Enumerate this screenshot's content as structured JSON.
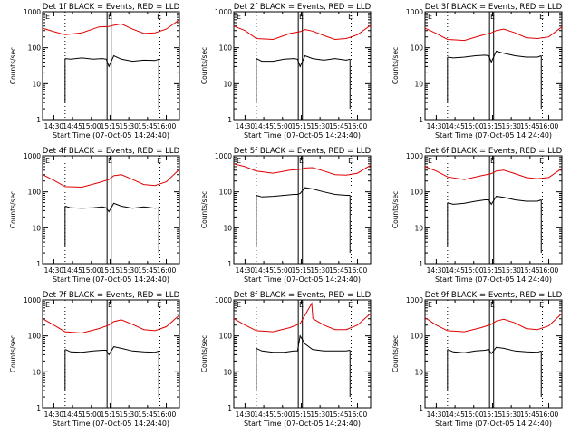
{
  "figure": {
    "x_ticks": [
      "14:30",
      "14:45",
      "15:00",
      "15:15",
      "15:30",
      "15:45",
      "16:00"
    ],
    "y_ticks": [
      "1",
      "10",
      "100",
      "1000"
    ],
    "x_label": "Start Time (07-Oct-05 14:24:40)",
    "y_label": "Counts/sec",
    "marker_label": "E",
    "colors": {
      "events": "#000000",
      "lld": "#e00000",
      "axes": "#000000"
    }
  },
  "chart_data": [
    {
      "type": "line",
      "title": "Det 1f BLACK = Events, RED = LLD",
      "xlabel": "Start Time (07-Oct-05 14:24:40)",
      "ylabel": "Counts/sec",
      "xlim_minutes_after_1430": [
        -3,
        33.5
      ],
      "ylim": [
        1,
        1000
      ],
      "y_scale": "log",
      "x_ticks": [
        "14:30",
        "14:45",
        "15:00",
        "15:15",
        "15:30",
        "15:45",
        "16:00"
      ],
      "series": [
        {
          "name": "Events",
          "color": "#000000",
          "x": [
            3,
            4.5,
            7.5,
            10.5,
            13,
            14,
            14.7,
            16,
            18,
            21,
            24,
            27,
            28
          ],
          "y": [
            50,
            48,
            52,
            48,
            50,
            48,
            30,
            60,
            48,
            42,
            45,
            44,
            48
          ]
        },
        {
          "name": "LLD",
          "color": "#e00000",
          "x": [
            -3,
            0,
            3,
            7.5,
            12,
            14.7,
            16,
            18,
            21,
            24,
            27,
            30,
            33.5
          ],
          "y": [
            350,
            280,
            230,
            260,
            380,
            390,
            420,
            460,
            330,
            250,
            260,
            330,
            600
          ]
        }
      ]
    },
    {
      "type": "line",
      "title": "Det 2f BLACK = Events, RED = LLD",
      "xlabel": "Start Time (07-Oct-05 14:24:40)",
      "ylabel": "Counts/sec",
      "xlim_minutes_after_1430": [
        -3,
        33.5
      ],
      "ylim": [
        1,
        1000
      ],
      "y_scale": "log",
      "x_ticks": [
        "14:30",
        "14:45",
        "15:00",
        "15:15",
        "15:30",
        "15:45",
        "16:00"
      ],
      "series": [
        {
          "name": "Events",
          "color": "#000000",
          "x": [
            3,
            4.5,
            7.5,
            10.5,
            13,
            14,
            14.7,
            16,
            18,
            21,
            24,
            27,
            28
          ],
          "y": [
            50,
            42,
            42,
            48,
            50,
            48,
            30,
            60,
            50,
            45,
            50,
            45,
            48
          ]
        },
        {
          "name": "LLD",
          "color": "#e00000",
          "x": [
            -3,
            0,
            3,
            7.5,
            12,
            14.7,
            16,
            18,
            21,
            24,
            27,
            30,
            33.5
          ],
          "y": [
            400,
            300,
            180,
            170,
            250,
            280,
            320,
            290,
            220,
            170,
            180,
            230,
            420
          ]
        }
      ]
    },
    {
      "type": "line",
      "title": "Det 3f BLACK = Events, RED = LLD",
      "xlabel": "Start Time (07-Oct-05 14:24:40)",
      "ylabel": "Counts/sec",
      "xlim_minutes_after_1430": [
        -3,
        33.5
      ],
      "ylim": [
        1,
        1000
      ],
      "y_scale": "log",
      "x_ticks": [
        "14:30",
        "14:45",
        "15:00",
        "15:15",
        "15:30",
        "15:45",
        "16:00"
      ],
      "series": [
        {
          "name": "Events",
          "color": "#000000",
          "x": [
            3,
            4.5,
            7.5,
            10.5,
            13,
            14,
            14.7,
            16,
            18,
            21,
            24,
            27,
            28
          ],
          "y": [
            55,
            52,
            55,
            60,
            62,
            60,
            40,
            80,
            70,
            60,
            55,
            55,
            60
          ]
        },
        {
          "name": "LLD",
          "color": "#e00000",
          "x": [
            -3,
            0,
            3,
            7.5,
            12,
            14.7,
            16,
            18,
            21,
            24,
            27,
            30,
            33.5
          ],
          "y": [
            350,
            250,
            170,
            160,
            220,
            260,
            300,
            330,
            260,
            190,
            180,
            200,
            380
          ]
        }
      ]
    },
    {
      "type": "line",
      "title": "Det 4f BLACK = Events, RED = LLD",
      "xlabel": "Start Time (07-Oct-05 14:24:40)",
      "ylabel": "Counts/sec",
      "xlim_minutes_after_1430": [
        -3,
        33.5
      ],
      "ylim": [
        1,
        1000
      ],
      "y_scale": "log",
      "x_ticks": [
        "14:30",
        "14:45",
        "15:00",
        "15:15",
        "15:30",
        "15:45",
        "16:00"
      ],
      "series": [
        {
          "name": "Events",
          "color": "#000000",
          "x": [
            3,
            4.5,
            7.5,
            10.5,
            13,
            14,
            14.7,
            16,
            18,
            21,
            24,
            27,
            28
          ],
          "y": [
            40,
            36,
            35,
            36,
            38,
            36,
            28,
            48,
            40,
            35,
            38,
            35,
            36
          ]
        },
        {
          "name": "LLD",
          "color": "#e00000",
          "x": [
            -3,
            0,
            3,
            7.5,
            12,
            14.7,
            16,
            18,
            21,
            24,
            27,
            30,
            33.5
          ],
          "y": [
            300,
            210,
            140,
            135,
            180,
            220,
            280,
            300,
            220,
            160,
            150,
            190,
            420
          ]
        }
      ]
    },
    {
      "type": "line",
      "title": "Det 5f BLACK = Events, RED = LLD",
      "xlabel": "Start Time (07-Oct-05 14:24:40)",
      "ylabel": "Counts/sec",
      "xlim_minutes_after_1430": [
        -3,
        33.5
      ],
      "ylim": [
        1,
        1000
      ],
      "y_scale": "log",
      "x_ticks": [
        "14:30",
        "14:45",
        "15:00",
        "15:15",
        "15:30",
        "15:45",
        "16:00"
      ],
      "series": [
        {
          "name": "Events",
          "color": "#000000",
          "x": [
            3,
            4.5,
            7.5,
            10.5,
            13,
            14,
            14.7,
            16,
            18,
            21,
            24,
            27,
            28
          ],
          "y": [
            80,
            72,
            75,
            80,
            85,
            85,
            90,
            130,
            120,
            100,
            85,
            80,
            80
          ]
        },
        {
          "name": "LLD",
          "color": "#e00000",
          "x": [
            -3,
            0,
            3,
            7.5,
            12,
            14.7,
            16,
            18,
            21,
            24,
            27,
            30,
            33.5
          ],
          "y": [
            600,
            500,
            380,
            330,
            400,
            420,
            460,
            470,
            380,
            300,
            290,
            330,
            550
          ]
        }
      ]
    },
    {
      "type": "line",
      "title": "Det 6f BLACK = Events, RED = LLD",
      "xlabel": "Start Time (07-Oct-05 14:24:40)",
      "ylabel": "Counts/sec",
      "xlim_minutes_after_1430": [
        -3,
        33.5
      ],
      "ylim": [
        1,
        1000
      ],
      "y_scale": "log",
      "x_ticks": [
        "14:30",
        "14:45",
        "15:00",
        "15:15",
        "15:30",
        "15:45",
        "16:00"
      ],
      "series": [
        {
          "name": "Events",
          "color": "#000000",
          "x": [
            3,
            4.5,
            7.5,
            10.5,
            13,
            14,
            14.7,
            16,
            18,
            21,
            24,
            27,
            28
          ],
          "y": [
            50,
            45,
            48,
            55,
            60,
            60,
            45,
            75,
            70,
            60,
            55,
            55,
            60
          ]
        },
        {
          "name": "LLD",
          "color": "#e00000",
          "x": [
            -3,
            0,
            3,
            7.5,
            12,
            14.7,
            16,
            18,
            21,
            24,
            27,
            30,
            33.5
          ],
          "y": [
            500,
            380,
            260,
            220,
            280,
            320,
            380,
            400,
            320,
            250,
            230,
            250,
            450
          ]
        }
      ]
    },
    {
      "type": "line",
      "title": "Det 7f BLACK = Events, RED = LLD",
      "xlabel": "Start Time (07-Oct-05 14:24:40)",
      "ylabel": "Counts/sec",
      "xlim_minutes_after_1430": [
        -3,
        33.5
      ],
      "ylim": [
        1,
        1000
      ],
      "y_scale": "log",
      "x_ticks": [
        "14:30",
        "14:45",
        "15:00",
        "15:15",
        "15:30",
        "15:45",
        "16:00"
      ],
      "series": [
        {
          "name": "Events",
          "color": "#000000",
          "x": [
            3,
            4.5,
            7.5,
            10.5,
            13,
            14,
            14.7,
            16,
            18,
            21,
            24,
            27,
            28
          ],
          "y": [
            42,
            36,
            35,
            38,
            40,
            40,
            30,
            50,
            45,
            38,
            36,
            35,
            38
          ]
        },
        {
          "name": "LLD",
          "color": "#e00000",
          "x": [
            -3,
            0,
            3,
            7.5,
            12,
            14.7,
            16,
            18,
            21,
            24,
            27,
            30,
            33.5
          ],
          "y": [
            300,
            200,
            130,
            120,
            160,
            200,
            250,
            280,
            210,
            150,
            140,
            180,
            380
          ]
        }
      ]
    },
    {
      "type": "line",
      "title": "Det 8f BLACK = Events, RED = LLD",
      "xlabel": "Start Time (07-Oct-05 14:24:40)",
      "ylabel": "Counts/sec",
      "xlim_minutes_after_1430": [
        -3,
        33.5
      ],
      "ylim": [
        1,
        1000
      ],
      "y_scale": "log",
      "x_ticks": [
        "14:30",
        "14:45",
        "15:00",
        "15:15",
        "15:30",
        "15:45",
        "16:00"
      ],
      "series": [
        {
          "name": "Events",
          "color": "#000000",
          "x": [
            3,
            4.5,
            7.5,
            10.5,
            13,
            14,
            14.7,
            16,
            18,
            21,
            24,
            27,
            28
          ],
          "y": [
            45,
            38,
            35,
            35,
            38,
            38,
            100,
            60,
            42,
            38,
            38,
            38,
            40
          ]
        },
        {
          "name": "LLD",
          "color": "#e00000",
          "x": [
            -3,
            0,
            3,
            7.5,
            12,
            14.7,
            16,
            17.8,
            18.1,
            21,
            24,
            27,
            30,
            33.5
          ],
          "y": [
            300,
            200,
            140,
            130,
            170,
            220,
            380,
            800,
            300,
            200,
            150,
            150,
            200,
            420
          ]
        }
      ]
    },
    {
      "type": "line",
      "title": "Det 9f BLACK = Events, RED = LLD",
      "xlabel": "Start Time (07-Oct-05 14:24:40)",
      "ylabel": "Counts/sec",
      "xlim_minutes_after_1430": [
        -3,
        33.5
      ],
      "ylim": [
        1,
        1000
      ],
      "y_scale": "log",
      "x_ticks": [
        "14:30",
        "14:45",
        "15:00",
        "15:15",
        "15:30",
        "15:45",
        "16:00"
      ],
      "series": [
        {
          "name": "Events",
          "color": "#000000",
          "x": [
            3,
            4.5,
            7.5,
            10.5,
            13,
            14,
            14.7,
            16,
            18,
            21,
            24,
            27,
            28
          ],
          "y": [
            42,
            36,
            34,
            38,
            40,
            42,
            32,
            48,
            45,
            38,
            36,
            35,
            38
          ]
        },
        {
          "name": "LLD",
          "color": "#e00000",
          "x": [
            -3,
            0,
            3,
            7.5,
            12,
            14.7,
            16,
            18,
            21,
            24,
            27,
            30,
            33.5
          ],
          "y": [
            320,
            200,
            140,
            130,
            170,
            210,
            260,
            290,
            230,
            160,
            150,
            190,
            420
          ]
        }
      ]
    }
  ]
}
